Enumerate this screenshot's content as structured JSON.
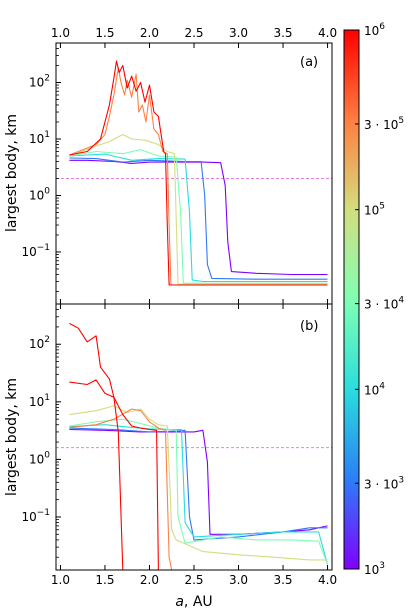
{
  "chart_data": {
    "type": "line",
    "layout": "two stacked panels sharing x axis, colorbar on right",
    "x_axis": {
      "label_prefix": "a",
      "label_suffix": ", AU",
      "range": [
        0.95,
        4.05
      ],
      "ticks": [
        "1.0",
        "1.5",
        "2.0",
        "2.5",
        "3.0",
        "3.5",
        "4.0"
      ],
      "tick_values": [
        1.0,
        1.5,
        2.0,
        2.5,
        3.0,
        3.5,
        4.0
      ],
      "ticks_top_on_upper_panel": true
    },
    "y_axis": {
      "label": "largest body, km",
      "scale": "log",
      "range": [
        0.012,
        500
      ],
      "tick_values": [
        0.1,
        1,
        10,
        100
      ],
      "tick_labels": [
        "10",
        "10",
        "10",
        "10"
      ],
      "tick_exponents": [
        "−1",
        "0",
        "1",
        "2"
      ]
    },
    "colorbar": {
      "scale": "log",
      "range": [
        1000,
        1000000
      ],
      "colormap": "rainbow",
      "tick_values": [
        1000,
        3000,
        10000,
        30000,
        100000,
        300000,
        1000000
      ],
      "tick_prefixes": [
        "",
        "3 · ",
        "",
        "3 · ",
        "",
        "3 · ",
        ""
      ],
      "tick_bases": [
        "10",
        "10",
        "10",
        "10",
        "10",
        "10",
        "10"
      ],
      "tick_exponents": [
        "3",
        "3",
        "4",
        "4",
        "5",
        "5",
        "6"
      ]
    },
    "panels": [
      {
        "annotation": "(a)",
        "reference_line": {
          "y": 2.0,
          "color": "#e87ee8",
          "style": "dashed"
        },
        "series": [
          {
            "param": 1000,
            "points": [
              [
                1.1,
                4.2
              ],
              [
                1.3,
                4.2
              ],
              [
                1.6,
                4.0
              ],
              [
                1.8,
                3.7
              ],
              [
                2.0,
                3.9
              ],
              [
                2.4,
                3.9
              ],
              [
                2.6,
                3.9
              ],
              [
                2.8,
                3.8
              ],
              [
                2.85,
                1.5
              ],
              [
                2.88,
                0.15
              ],
              [
                2.92,
                0.045
              ],
              [
                3.2,
                0.042
              ],
              [
                3.6,
                0.04
              ],
              [
                4.0,
                0.04
              ]
            ]
          },
          {
            "param": 3000,
            "points": [
              [
                1.1,
                4.6
              ],
              [
                1.4,
                4.5
              ],
              [
                1.7,
                3.9
              ],
              [
                2.0,
                4.2
              ],
              [
                2.4,
                4.0
              ],
              [
                2.58,
                4.0
              ],
              [
                2.62,
                1.0
              ],
              [
                2.65,
                0.06
              ],
              [
                2.7,
                0.034
              ],
              [
                3.2,
                0.033
              ],
              [
                4.0,
                0.033
              ]
            ]
          },
          {
            "param": 10000,
            "points": [
              [
                1.1,
                5.0
              ],
              [
                1.5,
                5.4
              ],
              [
                1.8,
                4.2
              ],
              [
                2.1,
                4.5
              ],
              [
                2.4,
                4.4
              ],
              [
                2.45,
                0.5
              ],
              [
                2.48,
                0.032
              ],
              [
                2.6,
                0.03
              ],
              [
                4.0,
                0.03
              ]
            ]
          },
          {
            "param": 30000,
            "points": [
              [
                1.1,
                5.0
              ],
              [
                1.4,
                6.0
              ],
              [
                1.7,
                5.5
              ],
              [
                1.9,
                6.5
              ],
              [
                2.1,
                5.0
              ],
              [
                2.3,
                4.8
              ],
              [
                2.35,
                0.5
              ],
              [
                2.38,
                0.028
              ],
              [
                2.5,
                0.028
              ],
              [
                4.0,
                0.028
              ]
            ]
          },
          {
            "param": 100000,
            "points": [
              [
                1.1,
                5.0
              ],
              [
                1.4,
                7.5
              ],
              [
                1.55,
                9.0
              ],
              [
                1.7,
                12.0
              ],
              [
                1.8,
                10.0
              ],
              [
                1.95,
                9.5
              ],
              [
                2.1,
                8.0
              ],
              [
                2.2,
                6.0
              ],
              [
                2.28,
                5.5
              ],
              [
                2.3,
                0.4
              ],
              [
                2.32,
                0.027
              ],
              [
                4.0,
                0.027
              ]
            ]
          },
          {
            "param": 300000,
            "points": [
              [
                1.1,
                5.2
              ],
              [
                1.4,
                8.0
              ],
              [
                1.5,
                12.0
              ],
              [
                1.55,
                25.0
              ],
              [
                1.6,
                60.0
              ],
              [
                1.65,
                180.0
              ],
              [
                1.68,
                100.0
              ],
              [
                1.72,
                60.0
              ],
              [
                1.75,
                110.0
              ],
              [
                1.8,
                55.0
              ],
              [
                1.85,
                140.0
              ],
              [
                1.88,
                30.0
              ],
              [
                1.92,
                40.0
              ],
              [
                1.96,
                20.0
              ],
              [
                2.0,
                60.0
              ],
              [
                2.05,
                15.0
              ],
              [
                2.1,
                12.0
              ],
              [
                2.15,
                6.0
              ],
              [
                2.2,
                5.5
              ],
              [
                2.22,
                0.3
              ],
              [
                2.24,
                0.026
              ],
              [
                4.0,
                0.026
              ]
            ]
          },
          {
            "param": 1000000,
            "points": [
              [
                1.1,
                5.2
              ],
              [
                1.3,
                6.0
              ],
              [
                1.45,
                10.0
              ],
              [
                1.55,
                40.0
              ],
              [
                1.6,
                120.0
              ],
              [
                1.63,
                240.0
              ],
              [
                1.66,
                150.0
              ],
              [
                1.7,
                200.0
              ],
              [
                1.75,
                80.0
              ],
              [
                1.8,
                130.0
              ],
              [
                1.85,
                70.0
              ],
              [
                1.9,
                100.0
              ],
              [
                1.95,
                45.0
              ],
              [
                2.0,
                90.0
              ],
              [
                2.05,
                30.0
              ],
              [
                2.1,
                25.0
              ],
              [
                2.13,
                12.0
              ],
              [
                2.16,
                6.0
              ],
              [
                2.18,
                5.5
              ],
              [
                2.2,
                0.3
              ],
              [
                2.22,
                0.026
              ],
              [
                4.0,
                0.026
              ]
            ]
          }
        ]
      },
      {
        "annotation": "(b)",
        "reference_line": {
          "y": 1.6,
          "color": "#e87ee8",
          "style": "dashed"
        },
        "series": [
          {
            "param": 1000,
            "points": [
              [
                1.1,
                3.3
              ],
              [
                1.5,
                3.2
              ],
              [
                1.9,
                3.0
              ],
              [
                2.2,
                3.0
              ],
              [
                2.5,
                3.0
              ],
              [
                2.6,
                3.2
              ],
              [
                2.65,
                0.9
              ],
              [
                2.68,
                0.05
              ],
              [
                3.0,
                0.05
              ],
              [
                3.5,
                0.055
              ],
              [
                3.8,
                0.06
              ],
              [
                4.0,
                0.07
              ]
            ]
          },
          {
            "param": 3000,
            "points": [
              [
                1.1,
                3.5
              ],
              [
                1.6,
                3.3
              ],
              [
                2.0,
                3.0
              ],
              [
                2.3,
                3.1
              ],
              [
                2.4,
                3.2
              ],
              [
                2.45,
                0.1
              ],
              [
                2.5,
                0.04
              ],
              [
                3.0,
                0.045
              ],
              [
                3.5,
                0.055
              ],
              [
                3.8,
                0.065
              ],
              [
                4.0,
                0.065
              ]
            ]
          },
          {
            "param": 10000,
            "points": [
              [
                1.1,
                3.7
              ],
              [
                1.5,
                4.0
              ],
              [
                1.8,
                3.6
              ],
              [
                2.0,
                3.4
              ],
              [
                2.2,
                3.3
              ],
              [
                2.36,
                3.3
              ],
              [
                2.4,
                0.08
              ],
              [
                2.5,
                0.045
              ],
              [
                3.0,
                0.05
              ],
              [
                3.5,
                0.055
              ],
              [
                3.9,
                0.055
              ],
              [
                4.0,
                0.015
              ]
            ]
          },
          {
            "param": 30000,
            "points": [
              [
                1.1,
                3.8
              ],
              [
                1.4,
                4.5
              ],
              [
                1.7,
                5.0
              ],
              [
                1.9,
                4.2
              ],
              [
                2.1,
                3.5
              ],
              [
                2.3,
                3.2
              ],
              [
                2.32,
                0.1
              ],
              [
                2.4,
                0.035
              ],
              [
                2.8,
                0.045
              ],
              [
                3.2,
                0.04
              ],
              [
                3.6,
                0.04
              ],
              [
                3.9,
                0.038
              ],
              [
                4.0,
                0.015
              ]
            ]
          },
          {
            "param": 100000,
            "points": [
              [
                1.1,
                6.0
              ],
              [
                1.4,
                7.0
              ],
              [
                1.6,
                8.5
              ],
              [
                1.75,
                6.5
              ],
              [
                1.9,
                7.5
              ],
              [
                2.0,
                5.0
              ],
              [
                2.1,
                4.0
              ],
              [
                2.2,
                3.8
              ],
              [
                2.25,
                0.06
              ],
              [
                2.3,
                0.04
              ],
              [
                2.6,
                0.025
              ],
              [
                3.0,
                0.022
              ],
              [
                3.4,
                0.02
              ],
              [
                3.8,
                0.018
              ],
              [
                4.0,
                0.018
              ]
            ]
          },
          {
            "param": 300000,
            "points": [
              [
                1.1,
                3.6
              ],
              [
                1.4,
                4.0
              ],
              [
                1.6,
                5.0
              ],
              [
                1.8,
                7.5
              ],
              [
                1.9,
                7.0
              ],
              [
                2.0,
                4.5
              ],
              [
                2.1,
                3.5
              ],
              [
                2.18,
                3.2
              ],
              [
                2.22,
                0.02
              ],
              [
                2.25,
                0.012
              ]
            ]
          },
          {
            "param": 1000000,
            "points": [
              [
                1.1,
                22.0
              ],
              [
                1.3,
                20.0
              ],
              [
                1.4,
                24.0
              ],
              [
                1.5,
                14.0
              ],
              [
                1.6,
                12.0
              ],
              [
                1.7,
                6.0
              ],
              [
                1.8,
                3.8
              ],
              [
                1.9,
                3.5
              ],
              [
                2.0,
                3.3
              ],
              [
                2.08,
                3.2
              ],
              [
                2.1,
                0.012
              ]
            ]
          },
          {
            "param": 1000000,
            "points": [
              [
                1.1,
                230.0
              ],
              [
                1.2,
                190.0
              ],
              [
                1.3,
                110.0
              ],
              [
                1.4,
                140.0
              ],
              [
                1.45,
                40.0
              ],
              [
                1.55,
                25.0
              ],
              [
                1.6,
                12.0
              ],
              [
                1.65,
                3.0
              ],
              [
                1.7,
                0.012
              ]
            ]
          }
        ]
      }
    ]
  }
}
